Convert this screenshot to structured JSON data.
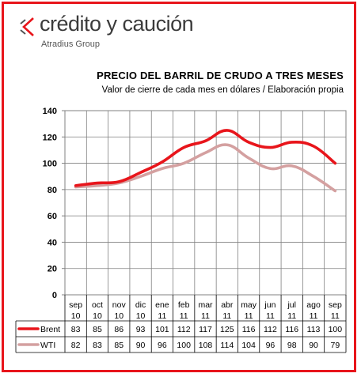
{
  "brand": {
    "name": "crédito y caución",
    "sub": "Atradius Group",
    "accent": "#e8151b"
  },
  "chart_data": {
    "type": "line",
    "title": "PRECIO DEL BARRIL DE CRUDO A TRES MESES",
    "subtitle": "Valor de cierre de cada mes en dólares / Elaboración propia",
    "categories": [
      [
        "sep",
        "10"
      ],
      [
        "oct",
        "10"
      ],
      [
        "nov",
        "10"
      ],
      [
        "dic",
        "10"
      ],
      [
        "ene",
        "11"
      ],
      [
        "feb",
        "11"
      ],
      [
        "mar",
        "11"
      ],
      [
        "abr",
        "11"
      ],
      [
        "may",
        "11"
      ],
      [
        "jun",
        "11"
      ],
      [
        "jul",
        "11"
      ],
      [
        "ago",
        "11"
      ],
      [
        "sep",
        "11"
      ]
    ],
    "ylim": [
      0,
      140
    ],
    "yticks": [
      0,
      20,
      40,
      60,
      80,
      100,
      120,
      140
    ],
    "grid": true,
    "legend": "table-below",
    "series": [
      {
        "name": "Brent",
        "color": "#e8151b",
        "values": [
          83,
          85,
          86,
          93,
          101,
          112,
          117,
          125,
          116,
          112,
          116,
          113,
          100
        ]
      },
      {
        "name": "WTI",
        "color": "#d4a0a0",
        "values": [
          82,
          83,
          85,
          90,
          96,
          100,
          108,
          114,
          104,
          96,
          98,
          90,
          79
        ]
      }
    ]
  }
}
